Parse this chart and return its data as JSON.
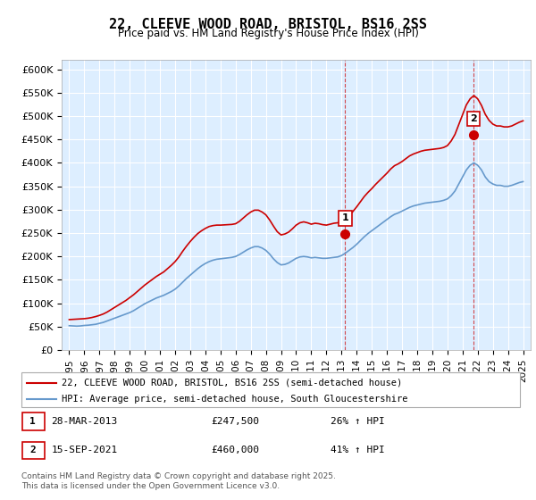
{
  "title": "22, CLEEVE WOOD ROAD, BRISTOL, BS16 2SS",
  "subtitle": "Price paid vs. HM Land Registry's House Price Index (HPI)",
  "ylabel": "",
  "xlabel": "",
  "ylim": [
    0,
    620000
  ],
  "yticks": [
    0,
    50000,
    100000,
    150000,
    200000,
    250000,
    300000,
    350000,
    400000,
    450000,
    500000,
    550000,
    600000
  ],
  "ytick_labels": [
    "£0",
    "£50K",
    "£100K",
    "£150K",
    "£200K",
    "£250K",
    "£300K",
    "£350K",
    "£400K",
    "£450K",
    "£500K",
    "£550K",
    "£600K"
  ],
  "xlim_start": 1994.5,
  "xlim_end": 2025.5,
  "xticks": [
    1995,
    1996,
    1997,
    1998,
    1999,
    2000,
    2001,
    2002,
    2003,
    2004,
    2005,
    2006,
    2007,
    2008,
    2009,
    2010,
    2011,
    2012,
    2013,
    2014,
    2015,
    2016,
    2017,
    2018,
    2019,
    2020,
    2021,
    2022,
    2023,
    2024,
    2025
  ],
  "sale1_x": 2013.24,
  "sale1_y": 247500,
  "sale1_label": "1",
  "sale2_x": 2021.71,
  "sale2_y": 460000,
  "sale2_label": "2",
  "legend_line1": "22, CLEEVE WOOD ROAD, BRISTOL, BS16 2SS (semi-detached house)",
  "legend_line2": "HPI: Average price, semi-detached house, South Gloucestershire",
  "annotation1": "1     28-MAR-2013          £247,500          26% ↑ HPI",
  "annotation2": "2     15-SEP-2021          £460,000          41% ↑ HPI",
  "footnote": "Contains HM Land Registry data © Crown copyright and database right 2025.\nThis data is licensed under the Open Government Licence v3.0.",
  "red_color": "#cc0000",
  "blue_color": "#6699cc",
  "bg_color": "#ddeeff",
  "grid_color": "#ffffff",
  "hpi_data_x": [
    1995.0,
    1995.25,
    1995.5,
    1995.75,
    1996.0,
    1996.25,
    1996.5,
    1996.75,
    1997.0,
    1997.25,
    1997.5,
    1997.75,
    1998.0,
    1998.25,
    1998.5,
    1998.75,
    1999.0,
    1999.25,
    1999.5,
    1999.75,
    2000.0,
    2000.25,
    2000.5,
    2000.75,
    2001.0,
    2001.25,
    2001.5,
    2001.75,
    2002.0,
    2002.25,
    2002.5,
    2002.75,
    2003.0,
    2003.25,
    2003.5,
    2003.75,
    2004.0,
    2004.25,
    2004.5,
    2004.75,
    2005.0,
    2005.25,
    2005.5,
    2005.75,
    2006.0,
    2006.25,
    2006.5,
    2006.75,
    2007.0,
    2007.25,
    2007.5,
    2007.75,
    2008.0,
    2008.25,
    2008.5,
    2008.75,
    2009.0,
    2009.25,
    2009.5,
    2009.75,
    2010.0,
    2010.25,
    2010.5,
    2010.75,
    2011.0,
    2011.25,
    2011.5,
    2011.75,
    2012.0,
    2012.25,
    2012.5,
    2012.75,
    2013.0,
    2013.25,
    2013.5,
    2013.75,
    2014.0,
    2014.25,
    2014.5,
    2014.75,
    2015.0,
    2015.25,
    2015.5,
    2015.75,
    2016.0,
    2016.25,
    2016.5,
    2016.75,
    2017.0,
    2017.25,
    2017.5,
    2017.75,
    2018.0,
    2018.25,
    2018.5,
    2018.75,
    2019.0,
    2019.25,
    2019.5,
    2019.75,
    2020.0,
    2020.25,
    2020.5,
    2020.75,
    2021.0,
    2021.25,
    2021.5,
    2021.75,
    2022.0,
    2022.25,
    2022.5,
    2022.75,
    2023.0,
    2023.25,
    2023.5,
    2023.75,
    2024.0,
    2024.25,
    2024.5,
    2024.75,
    2025.0
  ],
  "hpi_data_y": [
    52000,
    51500,
    51000,
    51500,
    52500,
    53000,
    54000,
    55000,
    57000,
    59000,
    62000,
    65000,
    68000,
    71000,
    74000,
    77000,
    80000,
    84000,
    89000,
    94000,
    99000,
    103000,
    107000,
    111000,
    114000,
    117000,
    121000,
    125000,
    130000,
    137000,
    145000,
    153000,
    160000,
    167000,
    174000,
    180000,
    185000,
    189000,
    192000,
    194000,
    195000,
    196000,
    197000,
    198000,
    200000,
    204000,
    209000,
    214000,
    218000,
    221000,
    221000,
    218000,
    213000,
    205000,
    195000,
    187000,
    182000,
    183000,
    186000,
    191000,
    196000,
    199000,
    200000,
    199000,
    197000,
    198000,
    197000,
    196000,
    196000,
    197000,
    198000,
    199000,
    202000,
    207000,
    213000,
    219000,
    226000,
    234000,
    242000,
    249000,
    255000,
    261000,
    267000,
    273000,
    279000,
    285000,
    290000,
    293000,
    297000,
    301000,
    305000,
    308000,
    310000,
    312000,
    314000,
    315000,
    316000,
    317000,
    318000,
    320000,
    323000,
    330000,
    340000,
    355000,
    370000,
    385000,
    395000,
    400000,
    395000,
    385000,
    370000,
    360000,
    355000,
    352000,
    352000,
    350000,
    350000,
    352000,
    355000,
    358000,
    360000
  ],
  "price_data_x": [
    1995.0,
    1995.25,
    1995.5,
    1995.75,
    1996.0,
    1996.25,
    1996.5,
    1996.75,
    1997.0,
    1997.25,
    1997.5,
    1997.75,
    1998.0,
    1998.25,
    1998.5,
    1998.75,
    1999.0,
    1999.25,
    1999.5,
    1999.75,
    2000.0,
    2000.25,
    2000.5,
    2000.75,
    2001.0,
    2001.25,
    2001.5,
    2001.75,
    2002.0,
    2002.25,
    2002.5,
    2002.75,
    2003.0,
    2003.25,
    2003.5,
    2003.75,
    2004.0,
    2004.25,
    2004.5,
    2004.75,
    2005.0,
    2005.25,
    2005.5,
    2005.75,
    2006.0,
    2006.25,
    2006.5,
    2006.75,
    2007.0,
    2007.25,
    2007.5,
    2007.75,
    2008.0,
    2008.25,
    2008.5,
    2008.75,
    2009.0,
    2009.25,
    2009.5,
    2009.75,
    2010.0,
    2010.25,
    2010.5,
    2010.75,
    2011.0,
    2011.25,
    2011.5,
    2011.75,
    2012.0,
    2012.25,
    2012.5,
    2012.75,
    2013.0,
    2013.25,
    2013.5,
    2013.75,
    2014.0,
    2014.25,
    2014.5,
    2014.75,
    2015.0,
    2015.25,
    2015.5,
    2015.75,
    2016.0,
    2016.25,
    2016.5,
    2016.75,
    2017.0,
    2017.25,
    2017.5,
    2017.75,
    2018.0,
    2018.25,
    2018.5,
    2018.75,
    2019.0,
    2019.25,
    2019.5,
    2019.75,
    2020.0,
    2020.25,
    2020.5,
    2020.75,
    2021.0,
    2021.25,
    2021.5,
    2021.75,
    2022.0,
    2022.25,
    2022.5,
    2022.75,
    2023.0,
    2023.25,
    2023.5,
    2023.75,
    2024.0,
    2024.25,
    2024.5,
    2024.75,
    2025.0
  ],
  "price_data_y": [
    65000,
    65500,
    66000,
    66500,
    67000,
    68000,
    69500,
    71500,
    74000,
    77000,
    81000,
    86000,
    91000,
    96000,
    101000,
    106000,
    112000,
    118000,
    125000,
    132000,
    139000,
    145000,
    151000,
    157000,
    162000,
    167000,
    174000,
    181000,
    189000,
    199000,
    211000,
    222000,
    232000,
    241000,
    249000,
    255000,
    260000,
    264000,
    266000,
    267000,
    267000,
    267500,
    268000,
    268500,
    270000,
    275000,
    282000,
    289000,
    295000,
    299000,
    299000,
    295000,
    289000,
    278000,
    265000,
    253000,
    246000,
    248000,
    252000,
    259000,
    267000,
    272000,
    274000,
    272000,
    269000,
    271000,
    270000,
    268000,
    267000,
    269000,
    271000,
    272000,
    275000,
    280000,
    288000,
    296000,
    306000,
    317000,
    328000,
    337000,
    345000,
    354000,
    362000,
    370000,
    378000,
    387000,
    394000,
    398000,
    403000,
    409000,
    415000,
    419000,
    422000,
    425000,
    427000,
    428000,
    429000,
    430000,
    431000,
    433000,
    437000,
    447000,
    461000,
    482000,
    503000,
    524000,
    537000,
    544000,
    537000,
    523000,
    504000,
    491000,
    483000,
    479000,
    479000,
    477000,
    477000,
    479000,
    483000,
    487000,
    490000
  ]
}
